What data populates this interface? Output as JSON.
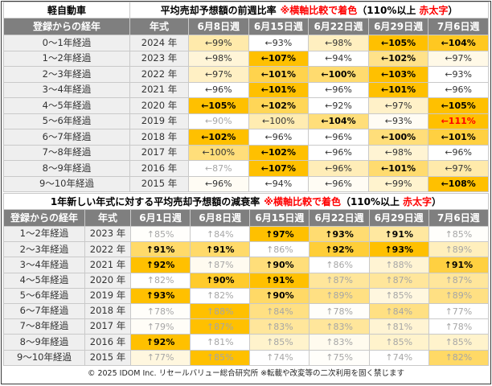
{
  "colors": {
    "header_bg": "#7F7F7F",
    "header_text": "#FFFFFF",
    "label_bg": "#EFEFEF",
    "scale_low": "#FFFFFF",
    "scale_high": "#FFC000",
    "accent_red": "#FF0000",
    "muted_text": "#A6A6A6",
    "body_text": "#333333",
    "grid_line": "#C9C9C9"
  },
  "chart_data": [
    {
      "type": "heatmap",
      "category": "軽自動車",
      "title": "平均売却予想額の前週比率",
      "note": "※横軸比較で着色",
      "legend": {
        "prefix": "（110%以上",
        "red": "赤太字",
        "suffix": "）"
      },
      "row_header": "登録からの経年",
      "year_header": "年式",
      "columns": [
        "6月8日週",
        "6月15日週",
        "6月22日週",
        "6月29日週",
        "7月6日週"
      ],
      "rows": [
        {
          "age": "0〜1年経過",
          "year": "2024 年",
          "cells": [
            {
              "text": "←99%",
              "value": 99
            },
            {
              "text": "←93%",
              "value": 93
            },
            {
              "text": "←98%",
              "value": 98
            },
            {
              "text": "←105%",
              "value": 105,
              "bold": true
            },
            {
              "text": "←104%",
              "value": 104,
              "bold": true
            }
          ]
        },
        {
          "age": "1〜2年経過",
          "year": "2023 年",
          "cells": [
            {
              "text": "←98%",
              "value": 98
            },
            {
              "text": "←107%",
              "value": 107,
              "bold": true
            },
            {
              "text": "←94%",
              "value": 94
            },
            {
              "text": "←102%",
              "value": 102,
              "bold": true
            },
            {
              "text": "←97%",
              "value": 97
            }
          ]
        },
        {
          "age": "2〜3年経過",
          "year": "2022 年",
          "cells": [
            {
              "text": "←97%",
              "value": 97
            },
            {
              "text": "←101%",
              "value": 101,
              "bold": true
            },
            {
              "text": "←100%",
              "value": 100,
              "bold": true
            },
            {
              "text": "←103%",
              "value": 103,
              "bold": true
            },
            {
              "text": "←93%",
              "value": 93
            }
          ]
        },
        {
          "age": "3〜4年経過",
          "year": "2021 年",
          "cells": [
            {
              "text": "←96%",
              "value": 96
            },
            {
              "text": "←101%",
              "value": 101,
              "bold": true
            },
            {
              "text": "←96%",
              "value": 96
            },
            {
              "text": "←101%",
              "value": 101,
              "bold": true
            },
            {
              "text": "←96%",
              "value": 96
            }
          ]
        },
        {
          "age": "4〜5年経過",
          "year": "2020 年",
          "cells": [
            {
              "text": "←105%",
              "value": 105,
              "bold": true
            },
            {
              "text": "←102%",
              "value": 102,
              "bold": true
            },
            {
              "text": "←92%",
              "value": 92
            },
            {
              "text": "←97%",
              "value": 97
            },
            {
              "text": "←105%",
              "value": 105,
              "bold": true
            }
          ]
        },
        {
          "age": "5〜6年経過",
          "year": "2019 年",
          "cells": [
            {
              "text": "←90%",
              "value": 90
            },
            {
              "text": "←100%",
              "value": 100
            },
            {
              "text": "←104%",
              "value": 104,
              "bold": true
            },
            {
              "text": "←93%",
              "value": 93
            },
            {
              "text": "←111%",
              "value": 111,
              "bold": true
            }
          ]
        },
        {
          "age": "6〜7年経過",
          "year": "2018 年",
          "cells": [
            {
              "text": "←102%",
              "value": 102,
              "bold": true
            },
            {
              "text": "←96%",
              "value": 96
            },
            {
              "text": "←96%",
              "value": 96
            },
            {
              "text": "←100%",
              "value": 100,
              "bold": true
            },
            {
              "text": "←101%",
              "value": 101,
              "bold": true
            }
          ]
        },
        {
          "age": "7〜8年経過",
          "year": "2017 年",
          "cells": [
            {
              "text": "←100%",
              "value": 100
            },
            {
              "text": "←102%",
              "value": 102,
              "bold": true
            },
            {
              "text": "←96%",
              "value": 96
            },
            {
              "text": "←98%",
              "value": 98
            },
            {
              "text": "←96%",
              "value": 96
            }
          ]
        },
        {
          "age": "8〜9年経過",
          "year": "2016 年",
          "cells": [
            {
              "text": "←87%",
              "value": 87
            },
            {
              "text": "←107%",
              "value": 107,
              "bold": true
            },
            {
              "text": "←96%",
              "value": 96
            },
            {
              "text": "←101%",
              "value": 101,
              "bold": true
            },
            {
              "text": "←97%",
              "value": 97
            }
          ]
        },
        {
          "age": "9〜10年経過",
          "year": "2015 年",
          "cells": [
            {
              "text": "←96%",
              "value": 96
            },
            {
              "text": "←94%",
              "value": 94
            },
            {
              "text": "←96%",
              "value": 96
            },
            {
              "text": "←99%",
              "value": 99
            },
            {
              "text": "←108%",
              "value": 108,
              "bold": true
            }
          ]
        }
      ]
    },
    {
      "type": "heatmap",
      "title": "1年新しい年式に対する平均売却予想額の減衰率",
      "note": "※横軸比較で着色",
      "legend": {
        "prefix": "（110%以上",
        "red": "赤太字",
        "suffix": "）"
      },
      "row_header": "登録からの経年",
      "year_header": "年式",
      "columns": [
        "6月1日週",
        "6月8日週",
        "6月15日週",
        "6月22日週",
        "6月29日週",
        "7月6日週"
      ],
      "rows": [
        {
          "age": "1〜2年経過",
          "year": "2023 年",
          "cells": [
            {
              "text": "↑85%",
              "value": 85
            },
            {
              "text": "↑84%",
              "value": 84
            },
            {
              "text": "↑97%",
              "value": 97,
              "bold": true
            },
            {
              "text": "↑93%",
              "value": 93,
              "bold": true
            },
            {
              "text": "↑91%",
              "value": 91,
              "bold": true
            },
            {
              "text": "↑85%",
              "value": 85
            }
          ]
        },
        {
          "age": "2〜3年経過",
          "year": "2022 年",
          "cells": [
            {
              "text": "↑91%",
              "value": 91,
              "bold": true
            },
            {
              "text": "↑91%",
              "value": 91,
              "bold": true
            },
            {
              "text": "↑86%",
              "value": 86
            },
            {
              "text": "↑92%",
              "value": 92,
              "bold": true
            },
            {
              "text": "↑93%",
              "value": 93,
              "bold": true
            },
            {
              "text": "↑89%",
              "value": 89
            }
          ]
        },
        {
          "age": "3〜4年経過",
          "year": "2021 年",
          "cells": [
            {
              "text": "↑92%",
              "value": 92,
              "bold": true
            },
            {
              "text": "↑87%",
              "value": 87
            },
            {
              "text": "↑90%",
              "value": 90,
              "bold": true
            },
            {
              "text": "↑86%",
              "value": 86
            },
            {
              "text": "↑88%",
              "value": 88
            },
            {
              "text": "↑91%",
              "value": 91,
              "bold": true
            }
          ]
        },
        {
          "age": "4〜5年経過",
          "year": "2020 年",
          "cells": [
            {
              "text": "↑82%",
              "value": 82
            },
            {
              "text": "↑90%",
              "value": 90,
              "bold": true
            },
            {
              "text": "↑91%",
              "value": 91,
              "bold": true
            },
            {
              "text": "↑87%",
              "value": 87
            },
            {
              "text": "↑87%",
              "value": 87
            },
            {
              "text": "↑87%",
              "value": 87
            }
          ]
        },
        {
          "age": "5〜6年経過",
          "year": "2019 年",
          "cells": [
            {
              "text": "↑93%",
              "value": 93,
              "bold": true
            },
            {
              "text": "↑82%",
              "value": 82
            },
            {
              "text": "↑90%",
              "value": 90,
              "bold": true
            },
            {
              "text": "↑89%",
              "value": 89
            },
            {
              "text": "↑85%",
              "value": 85
            },
            {
              "text": "↑89%",
              "value": 89
            }
          ]
        },
        {
          "age": "6〜7年経過",
          "year": "2018 年",
          "cells": [
            {
              "text": "↑78%",
              "value": 78
            },
            {
              "text": "↑88%",
              "value": 88
            },
            {
              "text": "↑84%",
              "value": 84
            },
            {
              "text": "↑78%",
              "value": 78
            },
            {
              "text": "↑84%",
              "value": 84
            },
            {
              "text": "↑77%",
              "value": 77
            }
          ]
        },
        {
          "age": "7〜8年経過",
          "year": "2017 年",
          "cells": [
            {
              "text": "↑79%",
              "value": 79
            },
            {
              "text": "↑87%",
              "value": 87
            },
            {
              "text": "↑83%",
              "value": 83
            },
            {
              "text": "↑83%",
              "value": 83
            },
            {
              "text": "↑81%",
              "value": 81
            },
            {
              "text": "↑78%",
              "value": 78
            }
          ]
        },
        {
          "age": "8〜9年経過",
          "year": "2016 年",
          "cells": [
            {
              "text": "↑92%",
              "value": 92,
              "bold": true
            },
            {
              "text": "↑81%",
              "value": 81
            },
            {
              "text": "↑85%",
              "value": 85
            },
            {
              "text": "↑83%",
              "value": 83
            },
            {
              "text": "↑85%",
              "value": 85
            },
            {
              "text": "↑85%",
              "value": 85
            }
          ]
        },
        {
          "age": "9〜10年経過",
          "year": "2015 年",
          "cells": [
            {
              "text": "↑77%",
              "value": 77
            },
            {
              "text": "↑85%",
              "value": 85
            },
            {
              "text": "↑74%",
              "value": 74
            },
            {
              "text": "↑75%",
              "value": 75
            },
            {
              "text": "↑74%",
              "value": 74
            },
            {
              "text": "↑82%",
              "value": 82
            }
          ]
        }
      ]
    }
  ],
  "footer": "© 2025 IDOM Inc. リセールバリュー総合研究所 ※転載や改変等の二次利用を固く禁じます"
}
